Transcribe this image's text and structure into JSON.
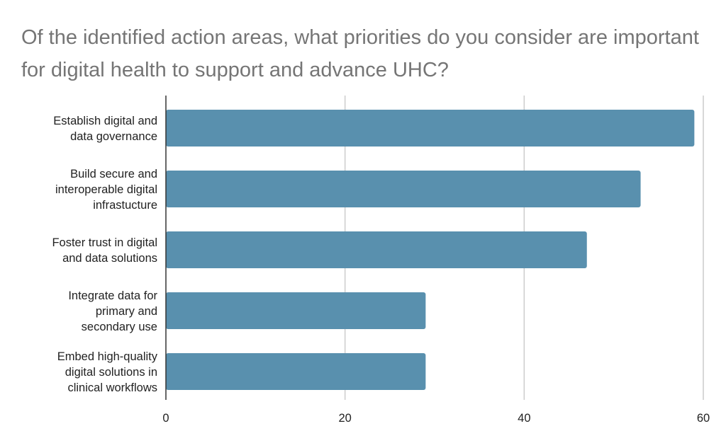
{
  "chart_data": {
    "type": "bar",
    "orientation": "horizontal",
    "title": "Of the identified action areas, what priorities do you consider are important for digital health to support and advance UHC?",
    "categories": [
      [
        "Establish digital and",
        "data governance"
      ],
      [
        "Build secure and",
        "interoperable digital",
        "infrastucture"
      ],
      [
        "Foster trust in digital",
        "and data solutions"
      ],
      [
        "Integrate data for",
        "primary and",
        "secondary use"
      ],
      [
        "Embed high-quality",
        "digital solutions in",
        "clinical workflows"
      ]
    ],
    "values": [
      59,
      53,
      47,
      29,
      29
    ],
    "xlim": [
      0,
      60
    ],
    "xticks": [
      "0",
      "20",
      "40",
      "60"
    ],
    "xlabel": "",
    "ylabel": "",
    "grid": true,
    "legend": "none",
    "bar_color": "#5990ae",
    "grid_color": "#cccccc",
    "title_color": "#757575"
  }
}
